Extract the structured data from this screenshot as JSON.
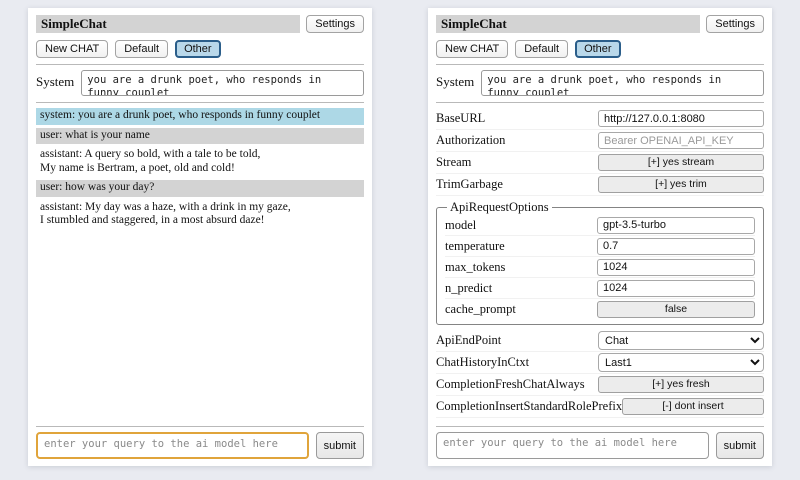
{
  "header": {
    "title": "SimpleChat",
    "settings_button": "Settings",
    "sessions": [
      "New CHAT",
      "Default",
      "Other"
    ],
    "active_session": "Other"
  },
  "system": {
    "label": "System",
    "value": "you are a drunk poet, who responds in funny couplet"
  },
  "chat": {
    "messages": [
      {
        "role": "system",
        "text": "system: you are a drunk poet, who responds in funny couplet"
      },
      {
        "role": "user",
        "text": "user: what is your name"
      },
      {
        "role": "assistant",
        "text": "assistant: A query so bold, with a tale to be told,\nMy name is Bertram, a poet, old and cold!"
      },
      {
        "role": "user",
        "text": "user: how was your day?"
      },
      {
        "role": "assistant",
        "text": "assistant: My day was a haze, with a drink in my gaze,\nI stumbled and staggered, in a most absurd daze!"
      }
    ]
  },
  "query": {
    "placeholder": "enter your query to the ai model here",
    "submit_label": "submit"
  },
  "settings": {
    "baseurl": {
      "label": "BaseURL",
      "value": "http://127.0.0.1:8080"
    },
    "authorization": {
      "label": "Authorization",
      "placeholder": "Bearer OPENAI_API_KEY"
    },
    "stream": {
      "label": "Stream",
      "button_label": "[+] yes stream"
    },
    "trim_garbage": {
      "label": "TrimGarbage",
      "button_label": "[+] yes trim"
    },
    "api_request_options": {
      "legend": "ApiRequestOptions",
      "model": {
        "label": "model",
        "value": "gpt-3.5-turbo"
      },
      "temperature": {
        "label": "temperature",
        "value": "0.7"
      },
      "max_tokens": {
        "label": "max_tokens",
        "value": "1024"
      },
      "n_predict": {
        "label": "n_predict",
        "value": "1024"
      },
      "cache_prompt": {
        "label": "cache_prompt",
        "button_label": "false"
      }
    },
    "api_endpoint": {
      "label": "ApiEndPoint",
      "selected": "Chat"
    },
    "chat_history_in_ctxt": {
      "label": "ChatHistoryInCtxt",
      "selected": "Last1"
    },
    "completion_fresh_chat_always": {
      "label": "CompletionFreshChatAlways",
      "button_label": "[+] yes fresh"
    },
    "completion_insert_standard_role_prefix": {
      "label": "CompletionInsertStandardRolePrefix",
      "button_label": "[-] dont insert"
    }
  },
  "colors": {
    "page_bg": "#e9ebf1",
    "panel_bg": "#ffffff",
    "titlebar_bg": "#d3d3d3",
    "system_msg_bg": "#add8e6",
    "user_msg_bg": "#d3d3d3",
    "active_session_bg": "#b9d8ea",
    "active_session_border": "#2b5e8a",
    "focused_input_border": "#e0a43b"
  }
}
